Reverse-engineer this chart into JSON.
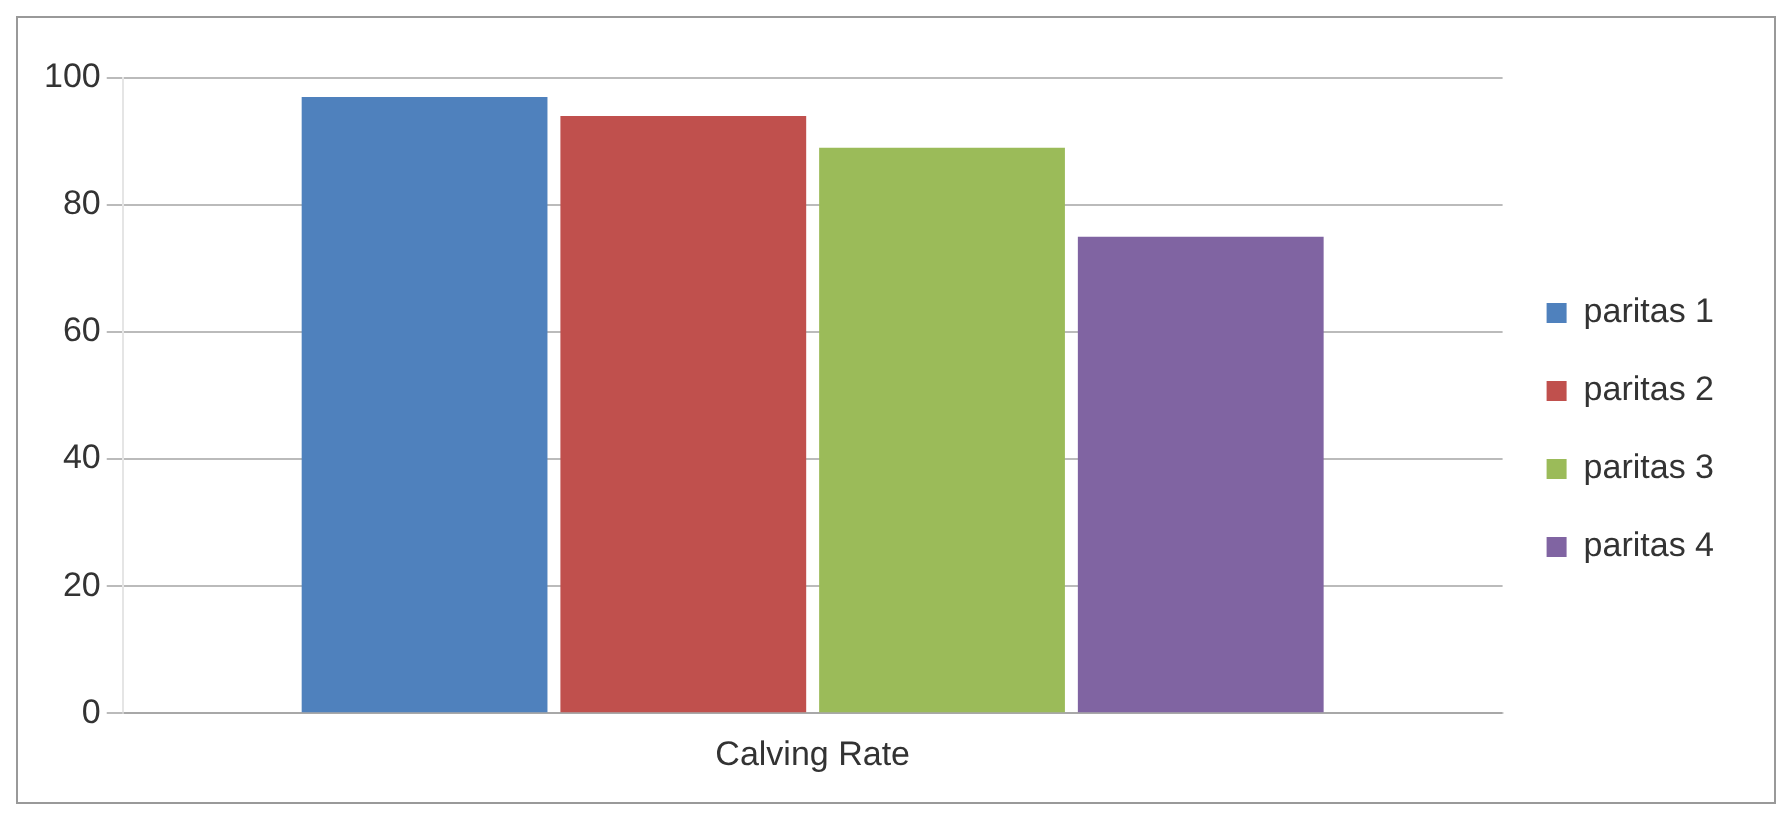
{
  "chart_data": {
    "type": "bar",
    "categories": [
      "Calving Rate"
    ],
    "series": [
      {
        "name": "paritas 1",
        "color": "#4f81bd",
        "values": [
          97
        ]
      },
      {
        "name": "paritas 2",
        "color": "#c0504d",
        "values": [
          94
        ]
      },
      {
        "name": "paritas 3",
        "color": "#9bbb59",
        "values": [
          89
        ]
      },
      {
        "name": "paritas 4",
        "color": "#8064a2",
        "values": [
          75
        ]
      }
    ],
    "ylim": [
      0,
      100
    ],
    "yticks": [
      0,
      20,
      40,
      60,
      80,
      100
    ],
    "grid": "y",
    "legend": "right"
  }
}
